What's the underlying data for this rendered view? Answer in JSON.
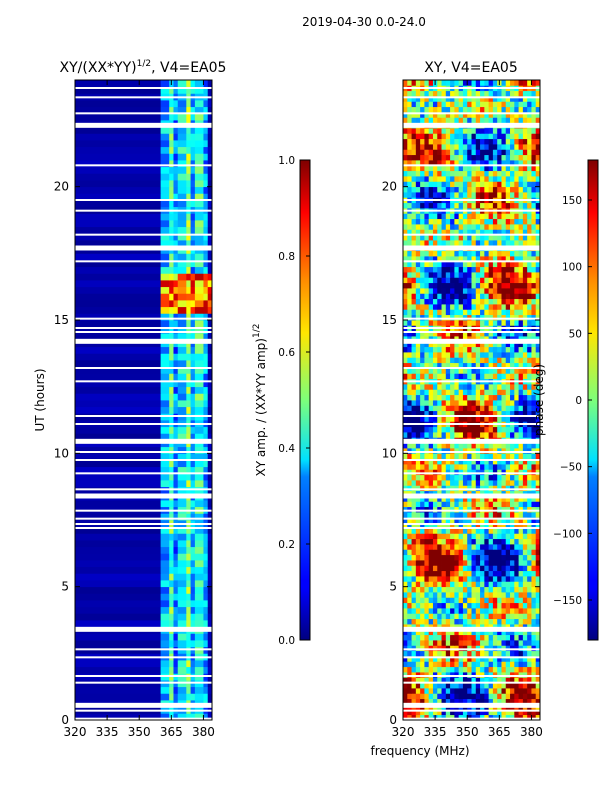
{
  "chart_data": {
    "type": "heatmap",
    "suptitle": "2019-04-30 0.0-24.0",
    "shared_xlabel": "frequency (MHz)",
    "panels": [
      {
        "id": "amp",
        "title": "XY/(XX*YY)",
        "title_sup": "1/2",
        "title_suffix": ", V4=EA05",
        "xlim": [
          320,
          384
        ],
        "ylim": [
          0,
          24
        ],
        "xticks": [
          320,
          335,
          350,
          365,
          380
        ],
        "yticks": [
          0,
          5,
          10,
          15,
          20
        ],
        "ylabel": "UT (hours)",
        "colorbar": {
          "label": "XY amp. / (XX*YY amp)",
          "label_sup": "1/2",
          "range": [
            0.0,
            1.0
          ],
          "ticks": [
            "0.0",
            "0.2",
            "0.4",
            "0.6",
            "0.8",
            "1.0"
          ],
          "colormap": "jet"
        },
        "columns_MHz": [
          [
            320,
            360,
            0.05
          ],
          [
            360,
            364,
            0.3
          ],
          [
            364,
            366,
            0.45
          ],
          [
            366,
            368,
            0.25
          ],
          [
            368,
            372,
            0.35
          ],
          [
            372,
            374,
            0.5
          ],
          [
            374,
            376,
            0.3
          ],
          [
            376,
            380,
            0.42
          ],
          [
            380,
            382,
            0.28
          ],
          [
            382,
            384,
            0.08
          ]
        ],
        "hot_band_hours": [
          15.2,
          16.8
        ]
      },
      {
        "id": "phase",
        "title": "XY, V4=EA05",
        "xlim": [
          320,
          384
        ],
        "ylim": [
          0,
          24
        ],
        "xticks": [
          320,
          335,
          350,
          365,
          380
        ],
        "yticks": [
          0,
          5,
          10,
          15,
          20
        ],
        "colorbar": {
          "label": "phase (deg)",
          "range": [
            -180,
            180
          ],
          "ticks": [
            "150",
            "100",
            "50",
            "0",
            "−50",
            "−100",
            "−150"
          ],
          "colormap": "jet"
        }
      }
    ],
    "flagged_hours": [
      0.05,
      0.35,
      0.55,
      1.4,
      1.65,
      2.35,
      2.65,
      3.4,
      7.2,
      7.35,
      7.55,
      7.85,
      8.4,
      8.65,
      9.25,
      9.75,
      10.05,
      10.45,
      11.1,
      11.4,
      12.7,
      13.2,
      14.2,
      14.55,
      14.7,
      15.05,
      17.2,
      17.7,
      18.2,
      19.1,
      19.5,
      20.8,
      22.3,
      22.75,
      23.35,
      23.7
    ]
  }
}
